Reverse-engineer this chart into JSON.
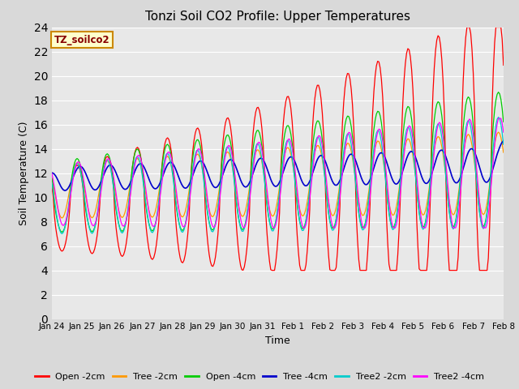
{
  "title": "Tonzi Soil CO2 Profile: Upper Temperatures",
  "xlabel": "Time",
  "ylabel": "Soil Temperature (C)",
  "ylim": [
    0,
    24
  ],
  "yticks": [
    0,
    2,
    4,
    6,
    8,
    10,
    12,
    14,
    16,
    18,
    20,
    22,
    24
  ],
  "x_labels": [
    "Jan 24",
    "Jan 25",
    "Jan 26",
    "Jan 27",
    "Jan 28",
    "Jan 29",
    "Jan 30",
    "Jan 31",
    "Feb 1",
    "Feb 2",
    "Feb 3",
    "Feb 4",
    "Feb 5",
    "Feb 6",
    "Feb 7",
    "Feb 8"
  ],
  "legend_label": "TZ_soilco2",
  "series_labels": [
    "Open -2cm",
    "Tree -2cm",
    "Open -4cm",
    "Tree -4cm",
    "Tree2 -2cm",
    "Tree2 -4cm"
  ],
  "series_colors": [
    "#ff0000",
    "#ff9900",
    "#00cc00",
    "#0000cc",
    "#00cccc",
    "#ff00ff"
  ],
  "background_color": "#d9d9d9",
  "plot_bg_color": "#e8e8e8",
  "grid_color": "#ffffff"
}
